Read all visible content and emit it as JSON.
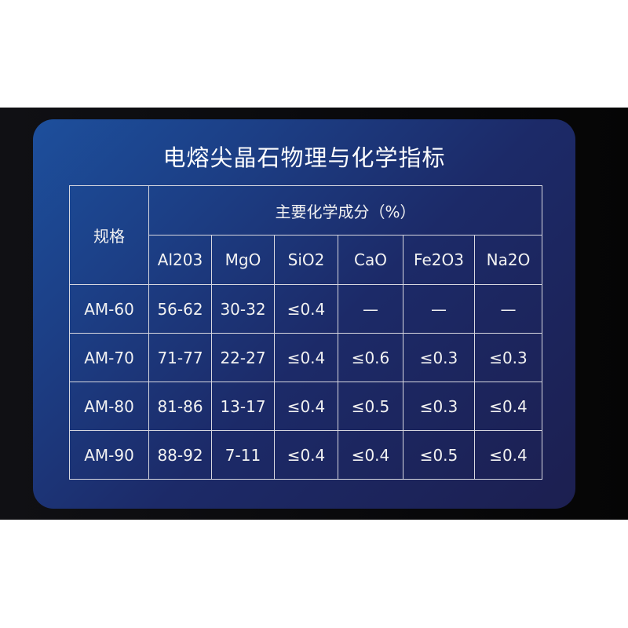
{
  "title": "电熔尖晶石物理与化学指标",
  "header": {
    "spec_label": "规格",
    "group_label": "主要化学成分（%）",
    "columns": [
      "Al203",
      "MgO",
      "SiO2",
      "CaO",
      "Fe2O3",
      "Na2O"
    ]
  },
  "rows": [
    [
      "AM-60",
      "56-62",
      "30-32",
      "≤0.4",
      "—",
      "—",
      "—"
    ],
    [
      "AM-70",
      "71-77",
      "22-27",
      "≤0.4",
      "≤0.6",
      "≤0.3",
      "≤0.3"
    ],
    [
      "AM-80",
      "81-86",
      "13-17",
      "≤0.4",
      "≤0.5",
      "≤0.3",
      "≤0.4"
    ],
    [
      "AM-90",
      "88-92",
      "7-11",
      "≤0.4",
      "≤0.4",
      "≤0.5",
      "≤0.4"
    ]
  ]
}
